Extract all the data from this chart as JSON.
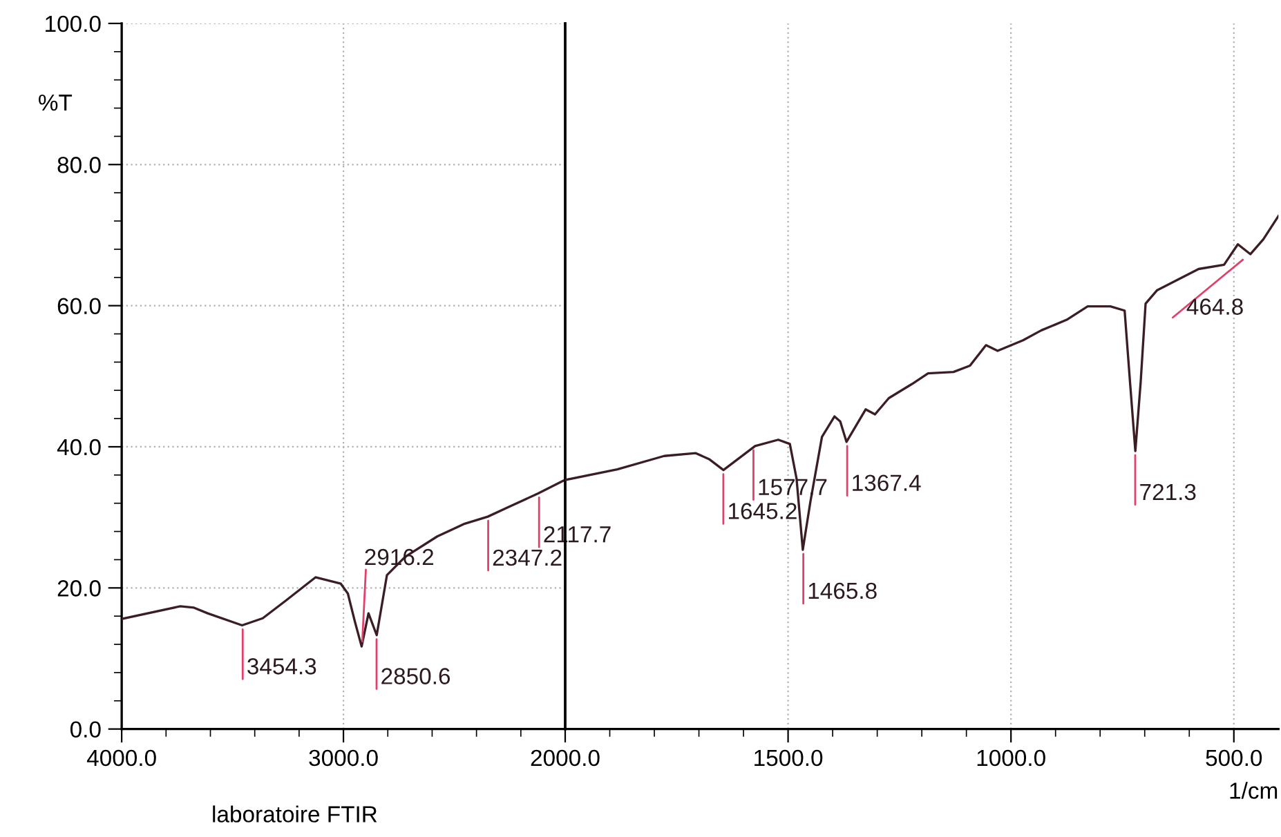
{
  "chart_data": [
    {
      "type": "line",
      "ylabel": "%T",
      "x": [
        4000,
        3736,
        3674,
        3612,
        3457,
        3364,
        3260,
        3126,
        3012,
        2980,
        2949,
        2918,
        2887,
        2850,
        2804,
        2722,
        2577,
        2453,
        2349,
        2266,
        2122,
        2008,
        2000
      ],
      "series": [
        {
          "color": "#3a1e24",
          "values": [
            15.6,
            17.4,
            17.2,
            16.4,
            14.7,
            15.7,
            18.2,
            21.5,
            20.6,
            19.2,
            15.3,
            11.7,
            16.4,
            13.3,
            21.8,
            24.4,
            27.3,
            29.1,
            30.1,
            31.3,
            33.4,
            35.2,
            35.3
          ]
        }
      ],
      "xlim": [
        4000,
        2000
      ],
      "xticks": [
        {
          "value": 4000,
          "label": "4000.0"
        },
        {
          "value": 3800,
          "label": null
        },
        {
          "value": 3600,
          "label": null
        },
        {
          "value": 3400,
          "label": null
        },
        {
          "value": 3200,
          "label": null
        },
        {
          "value": 3000,
          "label": "3000.0"
        },
        {
          "value": 2800,
          "label": null
        },
        {
          "value": 2600,
          "label": null
        },
        {
          "value": 2400,
          "label": null
        },
        {
          "value": 2200,
          "label": null
        },
        {
          "value": 2000,
          "label": "2000.0"
        }
      ],
      "ylim": [
        0,
        100
      ],
      "yticks": [
        {
          "value": 0,
          "label": "0.0"
        },
        {
          "value": 4,
          "label": null
        },
        {
          "value": 8,
          "label": null
        },
        {
          "value": 12,
          "label": null
        },
        {
          "value": 16,
          "label": null
        },
        {
          "value": 20,
          "label": "20.0"
        },
        {
          "value": 24,
          "label": null
        },
        {
          "value": 28,
          "label": null
        },
        {
          "value": 32,
          "label": null
        },
        {
          "value": 36,
          "label": null
        },
        {
          "value": 40,
          "label": "40.0"
        },
        {
          "value": 44,
          "label": null
        },
        {
          "value": 48,
          "label": null
        },
        {
          "value": 52,
          "label": null
        },
        {
          "value": 56,
          "label": null
        },
        {
          "value": 60,
          "label": "60.0"
        },
        {
          "value": 64,
          "label": null
        },
        {
          "value": 68,
          "label": null
        },
        {
          "value": 72,
          "label": null
        },
        {
          "value": 76,
          "label": null
        },
        {
          "value": 80,
          "label": "80.0"
        },
        {
          "value": 84,
          "label": null
        },
        {
          "value": 88,
          "label": null
        },
        {
          "value": 92,
          "label": null
        },
        {
          "value": 96,
          "label": null
        },
        {
          "value": 100,
          "label": "100.0"
        }
      ],
      "grid": true,
      "ref_lines": [
        {
          "axis": "x",
          "value": 2000,
          "color": "#000000"
        }
      ],
      "annotations": [
        {
          "text": "3454.3",
          "x": 3454.3,
          "y": 14.7
        },
        {
          "text": "2916.2",
          "x": 2916.2,
          "y": 11.7
        },
        {
          "text": "2850.6",
          "x": 2850.6,
          "y": 13.3
        },
        {
          "text": "2347.2",
          "x": 2347.2,
          "y": 30.1
        },
        {
          "text": "2117.7",
          "x": 2117.7,
          "y": 33.4
        },
        "laboratoire FTIR"
      ]
    },
    {
      "type": "line",
      "xlabel": "1/cm",
      "x": [
        2000,
        1883,
        1778,
        1707,
        1676,
        1645,
        1574,
        1522,
        1496,
        1481,
        1467,
        1450,
        1424,
        1396,
        1383,
        1369,
        1326,
        1305,
        1274,
        1222,
        1186,
        1129,
        1092,
        1056,
        1030,
        973,
        932,
        875,
        828,
        777,
        745,
        733,
        721,
        709,
        698,
        672,
        641,
        579,
        522,
        491,
        463,
        434,
        400
      ],
      "series": [
        {
          "color": "#3a1e24",
          "values": [
            35.3,
            36.8,
            38.7,
            39.1,
            38.2,
            36.7,
            40.1,
            41.0,
            40.4,
            35.5,
            25.4,
            32.2,
            41.4,
            44.3,
            43.6,
            40.7,
            45.3,
            44.6,
            46.9,
            48.9,
            50.4,
            50.6,
            51.5,
            54.4,
            53.6,
            55.1,
            56.5,
            58.0,
            59.9,
            59.9,
            59.3,
            49.2,
            39.4,
            49.2,
            60.3,
            62.2,
            63.2,
            65.2,
            65.8,
            68.7,
            67.3,
            69.4,
            72.7
          ]
        }
      ],
      "xlim": [
        2000,
        400
      ],
      "xticks": [
        {
          "value": 2000,
          "label": null
        },
        {
          "value": 1900,
          "label": null
        },
        {
          "value": 1800,
          "label": null
        },
        {
          "value": 1700,
          "label": null
        },
        {
          "value": 1600,
          "label": null
        },
        {
          "value": 1500,
          "label": "1500.0"
        },
        {
          "value": 1400,
          "label": null
        },
        {
          "value": 1300,
          "label": null
        },
        {
          "value": 1200,
          "label": null
        },
        {
          "value": 1100,
          "label": null
        },
        {
          "value": 1000,
          "label": "1000.0"
        },
        {
          "value": 900,
          "label": null
        },
        {
          "value": 800,
          "label": null
        },
        {
          "value": 700,
          "label": null
        },
        {
          "value": 600,
          "label": null
        },
        {
          "value": 500,
          "label": "500.0"
        }
      ],
      "ylim": [
        0,
        100
      ],
      "yticks": [
        {
          "value": 20,
          "label": null
        },
        {
          "value": 40,
          "label": null
        },
        {
          "value": 60,
          "label": null
        },
        {
          "value": 80,
          "label": null
        }
      ],
      "tick_labels": "x",
      "grid": true,
      "annotations": [
        {
          "text": "1645.2",
          "x": 1645.2,
          "y": 36.7
        },
        {
          "text": "1577.7",
          "x": 1577.7,
          "y": 40.1
        },
        {
          "text": "1465.8",
          "x": 1465.8,
          "y": 25.4
        },
        {
          "text": "1367.4",
          "x": 1367.4,
          "y": 40.7
        },
        {
          "text": "721.3",
          "x": 721.3,
          "y": 39.4
        },
        {
          "text": "464.8",
          "x": 464.8,
          "y": 67.3
        }
      ]
    }
  ]
}
